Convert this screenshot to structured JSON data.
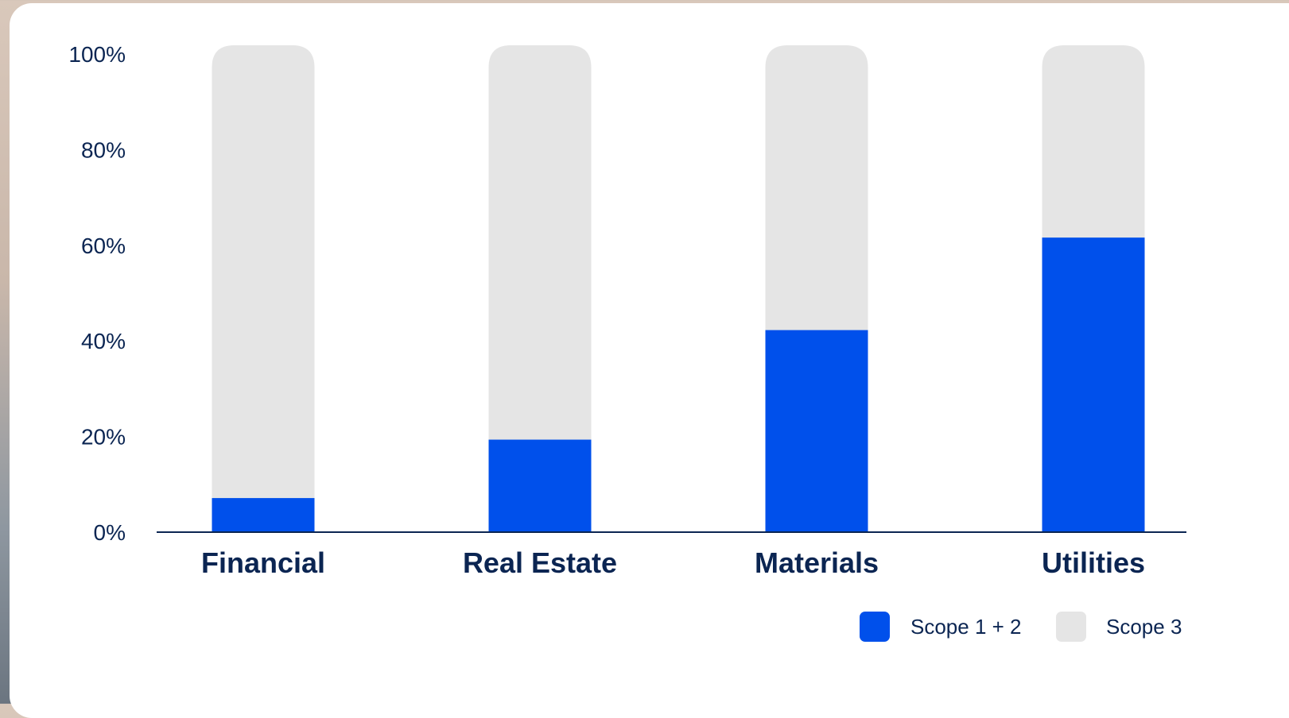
{
  "chart_data": {
    "type": "bar",
    "stacked": true,
    "categories": [
      "Financial",
      "Real Estate",
      "Materials",
      "Utilities"
    ],
    "series": [
      {
        "name": "Scope 1 + 2",
        "color": "#0050eb",
        "values": [
          7,
          19,
          41.5,
          60.5
        ]
      },
      {
        "name": "Scope 3",
        "color": "#e5e5e5",
        "values": [
          93,
          81,
          58.5,
          39.5
        ]
      }
    ],
    "ylim": [
      0,
      100
    ],
    "yticks": [
      {
        "value": 0,
        "label": "0%"
      },
      {
        "value": 20,
        "label": "20%"
      },
      {
        "value": 40,
        "label": "40%"
      },
      {
        "value": 60,
        "label": "60%"
      },
      {
        "value": 80,
        "label": "80%"
      },
      {
        "value": 100,
        "label": "100%"
      }
    ],
    "axis_color": "#0b2552",
    "text_color": "#0b2552",
    "grid": false,
    "legend_position": "bottom-right",
    "title": "",
    "xlabel": "",
    "ylabel": ""
  }
}
